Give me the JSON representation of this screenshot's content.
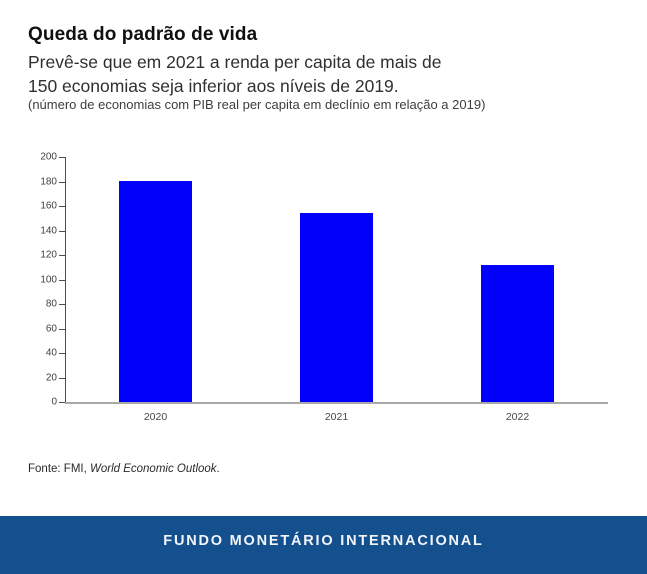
{
  "header": {
    "title": "Queda do padrão de vida",
    "subtitle_line1": "Prevê-se que em 2021 a renda per capita de mais de",
    "subtitle_line2": "150 economias seja inferior aos níveis de 2019.",
    "note": "(número de economias com PIB real per capita em declínio em relação a 2019)"
  },
  "chart_data": {
    "type": "bar",
    "categories": [
      "2020",
      "2021",
      "2022"
    ],
    "values": [
      180,
      154,
      112
    ],
    "title": "",
    "xlabel": "",
    "ylabel": "",
    "ylim": [
      0,
      200
    ],
    "ytick_step": 20,
    "grid": false,
    "legend": false,
    "bar_color": "#0000FB",
    "axis_color": "#4D4D4D",
    "baseline_color": "#A8A8A8"
  },
  "source": {
    "prefix": "Fonte: FMI, ",
    "italic": "World Economic Outlook",
    "suffix": "."
  },
  "footer": {
    "label": "FUNDO MONETÁRIO INTERNACIONAL",
    "background": "#15508E"
  }
}
